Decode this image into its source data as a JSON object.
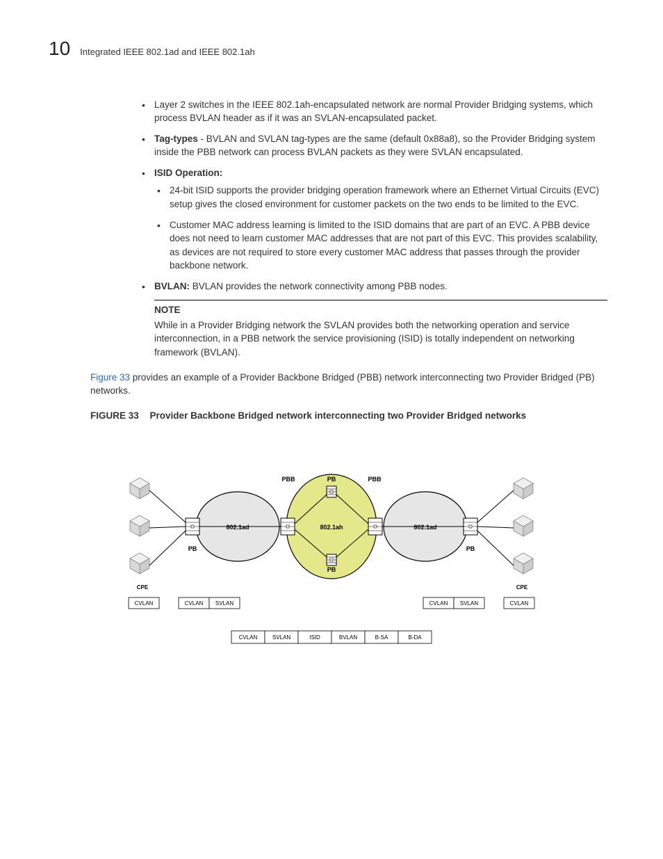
{
  "header": {
    "page_number": "10",
    "title": "Integrated IEEE 802.1ad and IEEE 802.1ah"
  },
  "bullets": {
    "b1": "Layer 2 switches in the IEEE 802.1ah-encapsulated network are normal Provider Bridging systems, which process BVLAN header as if it was an SVLAN-encapsulated packet.",
    "b2_label": " Tag-types",
    "b2_text": " - BVLAN and SVLAN tag-types are the same (default 0x88a8), so the Provider Bridging system inside the PBB network can process BVLAN packets as they were SVLAN encapsulated.",
    "b3_label": "ISID Operation:",
    "b3_sub1": "24-bit ISID supports the provider bridging operation framework where an Ethernet Virtual Circuits (EVC) setup gives the closed environment for customer packets on the two ends to be limited to the EVC.",
    "b3_sub2": "Customer MAC address learning is limited to the ISID domains that are part of an EVC. A PBB device does not need to learn customer MAC addresses that are not part of this EVC. This provides scalability, as devices are not required to store every customer MAC address that passes through the provider backbone network.",
    "b4_label": "BVLAN:",
    "b4_text": " BVLAN provides the network connectivity among PBB nodes."
  },
  "note": {
    "title": "NOTE",
    "text": "While in a Provider Bridging network the SVLAN provides both the networking operation and service interconnection, in a PBB network the service provisioning (ISID) is totally independent on networking framework (BVLAN)."
  },
  "para": {
    "link": "Figure 33",
    "rest": " provides an example of a Provider Backbone Bridged (PBB) network interconnecting two Provider Bridged (PB) networks."
  },
  "figure": {
    "label": "FIGURE 33",
    "title": "Provider Backbone Bridged network interconnecting two Provider Bridged networks"
  },
  "diagram": {
    "colors": {
      "pb_cloud_fill": "#e6e6e6",
      "pbb_cloud_fill": "#e5e88a",
      "cloud_stroke": "#000000",
      "cpe_fill": "#d9d9d9",
      "cpe_stroke": "#888888",
      "switch_fill": "#ffffff",
      "switch_stroke": "#000000",
      "line": "#000000",
      "box_fill": "#ffffff",
      "box_stroke": "#000000",
      "text": "#000000"
    },
    "labels": {
      "pbb": "PBB",
      "pb": "PB",
      "ad": "802.1ad",
      "ah": "802.1ah",
      "cpe": "CPE",
      "cvlan": "CVLAN",
      "svlan": "SVLAN",
      "isid": "ISID",
      "bvlan": "BVLAN",
      "bsa": "B-SA",
      "bda": "B-DA"
    }
  }
}
